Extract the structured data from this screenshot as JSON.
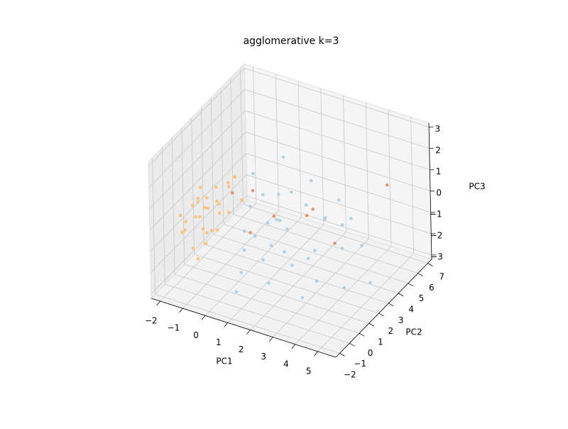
{
  "chart_data": {
    "type": "scatter3d",
    "title": "agglomerative k=3",
    "xlabel": "PC1",
    "ylabel": "PC2",
    "zlabel": "PC3",
    "xlim": [
      -2.4,
      5.8
    ],
    "ylim": [
      -2.4,
      7.4
    ],
    "zlim": [
      -3.2,
      3.2
    ],
    "xticks": [
      {
        "value": -2,
        "label": "−2"
      },
      {
        "value": -1,
        "label": "−1"
      },
      0,
      1,
      2,
      3,
      4,
      5
    ],
    "yticks": [
      {
        "value": -2,
        "label": "−2"
      },
      {
        "value": -1,
        "label": "−1"
      },
      0,
      1,
      2,
      3,
      4,
      5,
      6,
      7
    ],
    "zticks": [
      {
        "value": -3,
        "label": "−3"
      },
      {
        "value": -2,
        "label": "−2"
      },
      {
        "value": -1,
        "label": "−1"
      },
      0,
      1,
      2,
      3
    ],
    "grid": true,
    "series": [
      {
        "color": "#a6cee3",
        "x": [
          1.0,
          1.5,
          2.0,
          0.5,
          2.5,
          3.0,
          1.2,
          3.5,
          0.8,
          2.2,
          4.0,
          1.8,
          0.3,
          2.8,
          3.2,
          1.0,
          4.5,
          2.0,
          0.6,
          3.8,
          1.4,
          2.6,
          0.9,
          3.0,
          1.7,
          4.2,
          2.3,
          0.4,
          3.5,
          1.1,
          5.0,
          2.0,
          0.7,
          3.3,
          1.5
        ],
        "y": [
          0.5,
          1.0,
          1.5,
          1.2,
          0.8,
          2.0,
          2.5,
          1.0,
          -0.5,
          3.0,
          2.5,
          0.0,
          2.0,
          3.5,
          0.2,
          3.5,
          1.5,
          4.0,
          0.3,
          3.0,
          1.8,
          2.2,
          1.6,
          4.5,
          -0.3,
          4.0,
          0.5,
          0.8,
          2.0,
          2.8,
          3.0,
          2.0,
          -0.8,
          5.0,
          0.7
        ],
        "z": [
          -0.5,
          -1.0,
          -0.3,
          0.4,
          -1.5,
          -1.2,
          0.6,
          -2.0,
          -1.8,
          0.2,
          -1.0,
          -2.2,
          1.5,
          -0.5,
          -2.5,
          1.8,
          -2.2,
          0.8,
          -1.2,
          -0.2,
          -0.2,
          -1.8,
          0.9,
          0.0,
          -1.0,
          -1.5,
          -0.8,
          -0.6,
          0.5,
          -0.8,
          -2.5,
          1.2,
          -2.6,
          -1.0,
          0.2
        ]
      },
      {
        "color": "#fdbf6f",
        "x": [
          -1.5,
          -1.2,
          -1.0,
          -0.8,
          -1.8,
          -0.5,
          -1.3,
          -0.9,
          -0.3,
          -1.6,
          -0.7,
          -1.1,
          -0.2,
          -1.4,
          -0.6,
          -1.9,
          -0.4,
          -1.0,
          0.0,
          -1.2,
          -0.8,
          -1.7,
          -0.1,
          -1.5,
          -0.6,
          -1.0,
          0.2,
          -1.3,
          -0.9,
          -2.0
        ],
        "y": [
          0.2,
          0.5,
          -0.2,
          0.8,
          -0.5,
          0.3,
          1.0,
          0.0,
          0.9,
          0.7,
          -0.6,
          0.4,
          1.3,
          -0.3,
          0.6,
          0.1,
          -0.1,
          1.2,
          0.8,
          -0.8,
          0.2,
          0.9,
          0.4,
          -0.9,
          1.5,
          -0.5,
          1.0,
          0.3,
          -1.0,
          -0.2
        ],
        "z": [
          -0.3,
          0.1,
          -0.5,
          0.4,
          -0.8,
          0.6,
          -0.2,
          0.9,
          1.2,
          0.3,
          -0.9,
          -1.0,
          1.5,
          0.5,
          0.0,
          -0.6,
          -0.4,
          0.8,
          1.8,
          -1.2,
          -0.7,
          0.0,
          0.3,
          -0.4,
          1.0,
          0.2,
          0.7,
          1.1,
          -1.5,
          -0.2
        ]
      },
      {
        "color": "#e08b5f",
        "x": [
          4.5,
          0.5,
          1.2,
          2.0,
          -0.2,
          3.0,
          0.8,
          2.5
        ],
        "y": [
          6.0,
          1.5,
          2.0,
          3.5,
          1.0,
          4.0,
          0.5,
          3.0
        ],
        "z": [
          0.5,
          1.0,
          -0.2,
          -0.6,
          0.9,
          -1.8,
          -0.4,
          0.1
        ]
      }
    ]
  }
}
